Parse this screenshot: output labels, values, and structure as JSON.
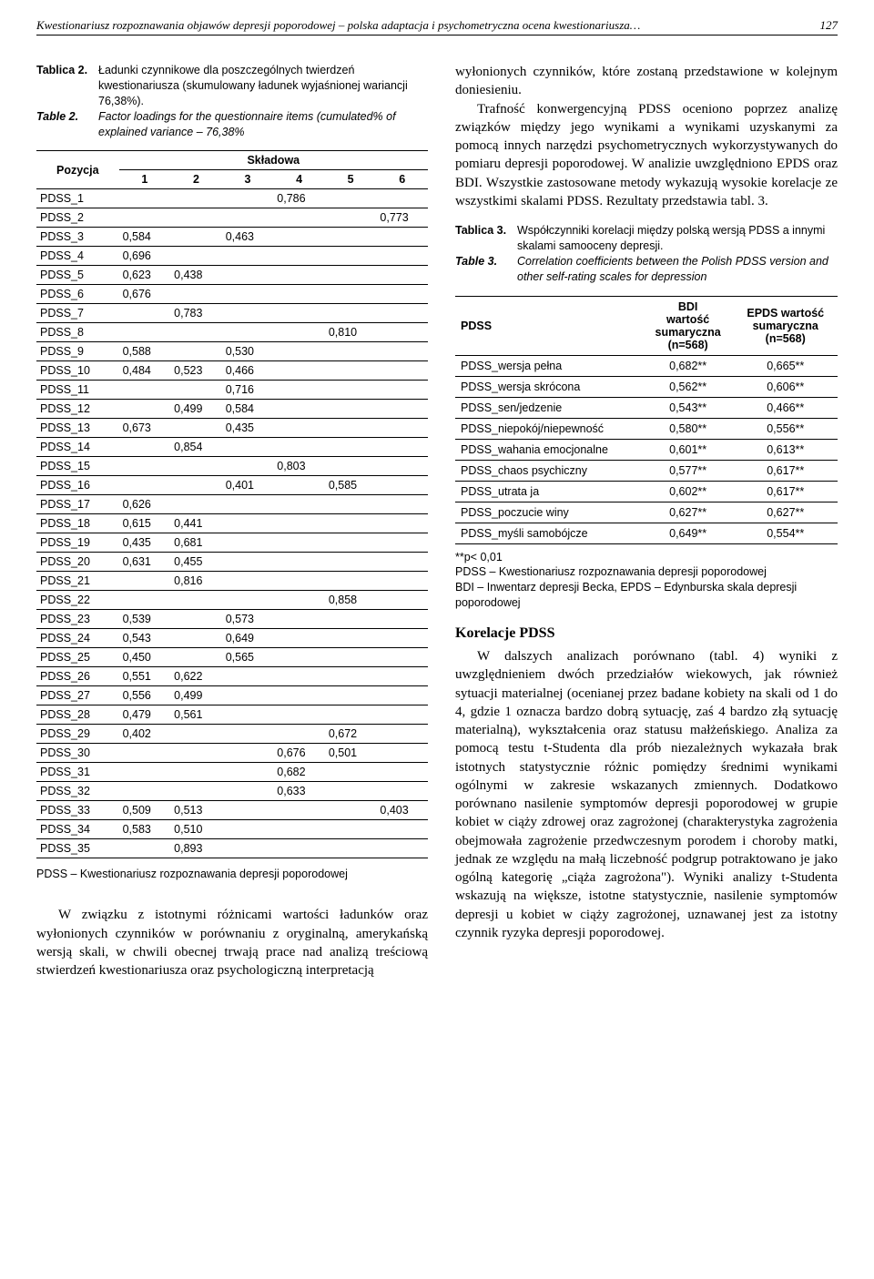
{
  "header": {
    "running_title": "Kwestionariusz rozpoznawania objawów depresji poporodowej – polska adaptacja i psychometryczna ocena kwestionariusza…",
    "page_number": "127"
  },
  "table2": {
    "caption_pl_label": "Tablica 2.",
    "caption_pl_text": "Ładunki czynnikowe dla poszczególnych twierdzeń kwestionariusza (skumulowany ładunek wyjaśnionej wariancji 76,38%).",
    "caption_en_label": "Table 2.",
    "caption_en_text": "Factor loadings for the questionnaire items (cumulated% of explained variance – 76,38%",
    "pozycja_header": "Pozycja",
    "skladowa_header": "Składowa",
    "col_headers": [
      "1",
      "2",
      "3",
      "4",
      "5",
      "6"
    ],
    "rows": [
      {
        "name": "PDSS_1",
        "v": [
          "",
          "",
          "",
          "0,786",
          "",
          ""
        ]
      },
      {
        "name": "PDSS_2",
        "v": [
          "",
          "",
          "",
          "",
          "",
          "0,773"
        ]
      },
      {
        "name": "PDSS_3",
        "v": [
          "0,584",
          "",
          "0,463",
          "",
          "",
          ""
        ]
      },
      {
        "name": "PDSS_4",
        "v": [
          "0,696",
          "",
          "",
          "",
          "",
          ""
        ]
      },
      {
        "name": "PDSS_5",
        "v": [
          "0,623",
          "0,438",
          "",
          "",
          "",
          ""
        ]
      },
      {
        "name": "PDSS_6",
        "v": [
          "0,676",
          "",
          "",
          "",
          "",
          ""
        ]
      },
      {
        "name": "PDSS_7",
        "v": [
          "",
          "0,783",
          "",
          "",
          "",
          ""
        ]
      },
      {
        "name": "PDSS_8",
        "v": [
          "",
          "",
          "",
          "",
          "0,810",
          ""
        ]
      },
      {
        "name": "PDSS_9",
        "v": [
          "0,588",
          "",
          "0,530",
          "",
          "",
          ""
        ]
      },
      {
        "name": "PDSS_10",
        "v": [
          "0,484",
          "0,523",
          "0,466",
          "",
          "",
          ""
        ]
      },
      {
        "name": "PDSS_11",
        "v": [
          "",
          "",
          "0,716",
          "",
          "",
          ""
        ]
      },
      {
        "name": "PDSS_12",
        "v": [
          "",
          "0,499",
          "0,584",
          "",
          "",
          ""
        ]
      },
      {
        "name": "PDSS_13",
        "v": [
          "0,673",
          "",
          "0,435",
          "",
          "",
          ""
        ]
      },
      {
        "name": "PDSS_14",
        "v": [
          "",
          "0,854",
          "",
          "",
          "",
          ""
        ]
      },
      {
        "name": "PDSS_15",
        "v": [
          "",
          "",
          "",
          "0,803",
          "",
          ""
        ]
      },
      {
        "name": "PDSS_16",
        "v": [
          "",
          "",
          "0,401",
          "",
          "0,585",
          ""
        ]
      },
      {
        "name": "PDSS_17",
        "v": [
          "0,626",
          "",
          "",
          "",
          "",
          ""
        ]
      },
      {
        "name": "PDSS_18",
        "v": [
          "0,615",
          "0,441",
          "",
          "",
          "",
          ""
        ]
      },
      {
        "name": "PDSS_19",
        "v": [
          "0,435",
          "0,681",
          "",
          "",
          "",
          ""
        ]
      },
      {
        "name": "PDSS_20",
        "v": [
          "0,631",
          "0,455",
          "",
          "",
          "",
          ""
        ]
      },
      {
        "name": "PDSS_21",
        "v": [
          "",
          "0,816",
          "",
          "",
          "",
          ""
        ]
      },
      {
        "name": "PDSS_22",
        "v": [
          "",
          "",
          "",
          "",
          "0,858",
          ""
        ]
      },
      {
        "name": "PDSS_23",
        "v": [
          "0,539",
          "",
          "0,573",
          "",
          "",
          ""
        ]
      },
      {
        "name": "PDSS_24",
        "v": [
          "0,543",
          "",
          "0,649",
          "",
          "",
          ""
        ]
      },
      {
        "name": "PDSS_25",
        "v": [
          "0,450",
          "",
          "0,565",
          "",
          "",
          ""
        ]
      },
      {
        "name": "PDSS_26",
        "v": [
          "0,551",
          "0,622",
          "",
          "",
          "",
          ""
        ]
      },
      {
        "name": "PDSS_27",
        "v": [
          "0,556",
          "0,499",
          "",
          "",
          "",
          ""
        ]
      },
      {
        "name": "PDSS_28",
        "v": [
          "0,479",
          "0,561",
          "",
          "",
          "",
          ""
        ]
      },
      {
        "name": "PDSS_29",
        "v": [
          "0,402",
          "",
          "",
          "",
          "0,672",
          ""
        ]
      },
      {
        "name": "PDSS_30",
        "v": [
          "",
          "",
          "",
          "0,676",
          "0,501",
          ""
        ]
      },
      {
        "name": "PDSS_31",
        "v": [
          "",
          "",
          "",
          "0,682",
          "",
          ""
        ]
      },
      {
        "name": "PDSS_32",
        "v": [
          "",
          "",
          "",
          "0,633",
          "",
          ""
        ]
      },
      {
        "name": "PDSS_33",
        "v": [
          "0,509",
          "0,513",
          "",
          "",
          "",
          "0,403"
        ]
      },
      {
        "name": "PDSS_34",
        "v": [
          "0,583",
          "0,510",
          "",
          "",
          "",
          ""
        ]
      },
      {
        "name": "PDSS_35",
        "v": [
          "",
          "0,893",
          "",
          "",
          "",
          ""
        ]
      }
    ],
    "note": "PDSS – Kwestionariusz rozpoznawania depresji poporodowej"
  },
  "left_bottom_para": "W związku z istotnymi różnicami wartości ładunków oraz wyłonionych czynników w porównaniu z oryginalną, amerykańską wersją skali, w chwili obecnej trwają prace nad analizą treściową stwierdzeń kwestionariusza oraz psychologiczną interpretacją",
  "right_col": {
    "para1": "wyłonionych czynników, które zostaną przedstawione w kolejnym doniesieniu.",
    "para2": "Trafność konwergencyjną PDSS oceniono poprzez analizę związków między jego wynikami a wynikami uzyskanymi za pomocą innych narzędzi psychometrycznych wykorzystywanych do pomiaru depresji poporodowej. W analizie uwzględniono EPDS oraz BDI. Wszystkie zastosowane metody wykazują wysokie korelacje ze wszystkimi skalami PDSS. Rezultaty przedstawia tabl. 3.",
    "table3": {
      "caption_pl_label": "Tablica 3.",
      "caption_pl_text": "Współczynniki korelacji między polską wersją PDSS a innymi skalami samooceny depresji.",
      "caption_en_label": "Table 3.",
      "caption_en_text": "Correlation coefficients between the Polish PDSS version and other self-rating scales for depression",
      "col1_header": "PDSS",
      "col2_header": "BDI\nwartość\nsumaryczna\n(n=568)",
      "col3_header": "EPDS wartość\nsumaryczna\n(n=568)",
      "rows": [
        {
          "name": "PDSS_wersja pełna",
          "bdi": "0,682**",
          "epds": "0,665**"
        },
        {
          "name": "PDSS_wersja skrócona",
          "bdi": "0,562**",
          "epds": "0,606**"
        },
        {
          "name": "PDSS_sen/jedzenie",
          "bdi": "0,543**",
          "epds": "0,466**"
        },
        {
          "name": "PDSS_niepokój/niepewność",
          "bdi": "0,580**",
          "epds": "0,556**"
        },
        {
          "name": "PDSS_wahania emocjonalne",
          "bdi": "0,601**",
          "epds": "0,613**"
        },
        {
          "name": "PDSS_chaos psychiczny",
          "bdi": "0,577**",
          "epds": "0,617**"
        },
        {
          "name": "PDSS_utrata ja",
          "bdi": "0,602**",
          "epds": "0,617**"
        },
        {
          "name": "PDSS_poczucie winy",
          "bdi": "0,627**",
          "epds": "0,627**"
        },
        {
          "name": "PDSS_myśli samobójcze",
          "bdi": "0,649**",
          "epds": "0,554**"
        }
      ],
      "note1": "**p< 0,01",
      "note2": "PDSS – Kwestionariusz rozpoznawania depresji poporodowej",
      "note3": "BDI – Inwentarz depresji Becka, EPDS – Edynburska skala depresji poporodowej"
    },
    "section_heading": "Korelacje PDSS",
    "para3": "W dalszych analizach porównano (tabl. 4) wyniki z uwzględnieniem dwóch przedziałów wiekowych, jak również sytuacji materialnej (ocenianej przez badane kobiety na skali od 1 do 4, gdzie 1 oznacza bardzo dobrą sytuację, zaś 4 bardzo złą sytuację materialną), wykształcenia oraz statusu małżeńskiego. Analiza za pomocą testu t-Studenta dla prób niezależnych wykazała brak istotnych statystycznie różnic pomiędzy średnimi wynikami ogólnymi w zakresie wskazanych zmiennych. Dodatkowo porównano nasilenie symptomów depresji poporodowej w grupie kobiet w ciąży zdrowej oraz zagrożonej (charakterystyka zagrożenia obejmowała zagrożenie przedwczesnym porodem i choroby matki, jednak ze względu na małą liczebność podgrup potraktowano je jako ogólną kategorię „ciąża zagrożona\"). Wyniki analizy t-Studenta wskazują na większe, istotne statystycznie, nasilenie symptomów depresji u kobiet w ciąży zagrożonej, uznawanej jest za istotny czynnik ryzyka depresji poporodowej."
  }
}
